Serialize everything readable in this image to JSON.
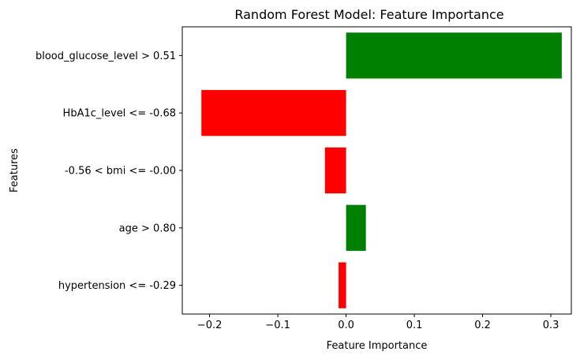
{
  "chart_data": {
    "type": "bar",
    "orientation": "horizontal",
    "title": "Random Forest Model: Feature Importance",
    "xlabel": "Feature Importance",
    "ylabel": "Features",
    "xlim": [
      -0.24,
      0.33
    ],
    "xticks": [
      -0.2,
      -0.1,
      0.0,
      0.1,
      0.2,
      0.3
    ],
    "xtick_labels": [
      "−0.2",
      "−0.1",
      "0.0",
      "0.1",
      "0.2",
      "0.3"
    ],
    "grid": false,
    "categories": [
      "blood_glucose_level > 0.51",
      "HbA1c_level <= -0.68",
      "-0.56 < bmi <= -0.00",
      "age > 0.80",
      "hypertension <= -0.29"
    ],
    "values": [
      0.316,
      -0.212,
      -0.031,
      0.029,
      -0.011
    ],
    "colors": {
      "positive": "#008000",
      "negative": "#ff0000"
    }
  }
}
